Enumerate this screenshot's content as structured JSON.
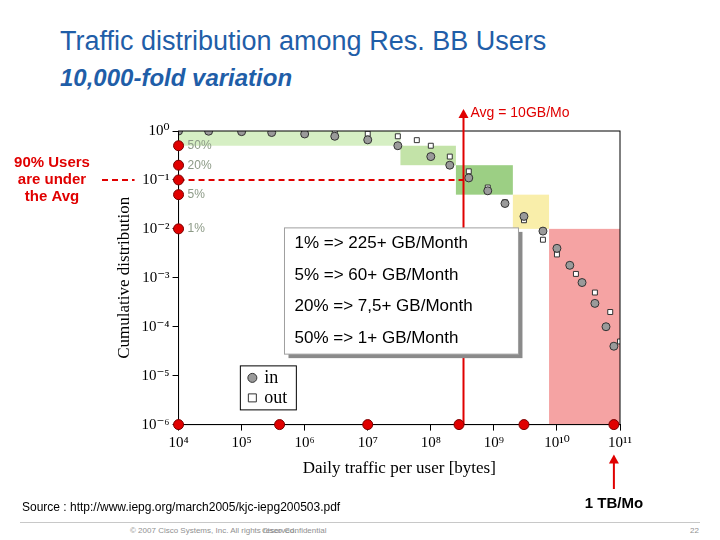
{
  "slide": {
    "title": "Traffic distribution among Res. BB Users",
    "subtitle": "10,000-fold variation",
    "source": "Source : http://www.iepg.org/march2005/kjc-iepg200503.pdf",
    "footer": [
      "© 2007 Cisco Systems, Inc. All rights reserved.",
      "Cisco Confidential",
      "22"
    ]
  },
  "chart_data": {
    "type": "scatter",
    "x_label": "Daily traffic per user [bytes]",
    "y_label": "Cumulative distribution",
    "log": true,
    "grid": false,
    "legend": "lower left",
    "xlim": [
      10000,
      100000000000
    ],
    "ylim": [
      1e-06,
      1
    ],
    "xticks": [
      {
        "value": 10000,
        "label": "10⁴"
      },
      {
        "value": 100000,
        "label": "10⁵"
      },
      {
        "value": 1000000,
        "label": "10⁶"
      },
      {
        "value": 10000000,
        "label": "10⁷"
      },
      {
        "value": 100000000,
        "label": "10⁸"
      },
      {
        "value": 1000000000,
        "label": "10⁹"
      },
      {
        "value": 10000000000,
        "label": "10¹⁰"
      },
      {
        "value": 100000000000,
        "label": "10¹¹"
      }
    ],
    "yticks": [
      {
        "value": 1e-06,
        "label": "10⁻⁶"
      },
      {
        "value": 1e-05,
        "label": "10⁻⁵"
      },
      {
        "value": 0.0001,
        "label": "10⁻⁴"
      },
      {
        "value": 0.001,
        "label": "10⁻³"
      },
      {
        "value": 0.01,
        "label": "10⁻²"
      },
      {
        "value": 0.1,
        "label": "10⁻¹"
      },
      {
        "value": 1,
        "label": "10⁰"
      }
    ],
    "series": [
      {
        "name": "in",
        "color": "#9a9a9a",
        "marker": "circle",
        "x": [
          10000,
          30000,
          100000,
          300000,
          1000000,
          3000000,
          10000000,
          30000000,
          100000000,
          200000000,
          400000000,
          800000000,
          1500000000,
          3000000000,
          6000000000,
          10000000000,
          16000000000,
          25000000000,
          40000000000,
          60000000000,
          80000000000
        ],
        "values": [
          1,
          0.99,
          0.97,
          0.93,
          0.87,
          0.78,
          0.66,
          0.5,
          0.3,
          0.2,
          0.11,
          0.06,
          0.033,
          0.018,
          0.009,
          0.004,
          0.0018,
          0.0008,
          0.0003,
          0.0001,
          4e-05
        ]
      },
      {
        "name": "out",
        "color": "#333333",
        "marker": "open_square",
        "x": [
          30000,
          100000,
          300000,
          1000000,
          3000000,
          10000000,
          30000000,
          60000000,
          100000000,
          200000000,
          400000000,
          800000000,
          1500000000,
          3000000000,
          6000000000,
          10000000000,
          20000000000,
          40000000000,
          70000000000,
          100000000000
        ],
        "values": [
          1,
          0.99,
          0.98,
          0.96,
          0.93,
          0.88,
          0.78,
          0.65,
          0.5,
          0.3,
          0.15,
          0.07,
          0.035,
          0.015,
          0.006,
          0.003,
          0.0012,
          0.0005,
          0.0002,
          5e-05
        ]
      }
    ],
    "regions": [
      {
        "label": "50%",
        "x": [
          10000,
          33000000
        ],
        "y": [
          0.5,
          1
        ],
        "color": "#d6efc4"
      },
      {
        "label": "20%",
        "x": [
          33000000,
          250000000
        ],
        "y": [
          0.2,
          0.5
        ],
        "color": "#c3e3a8"
      },
      {
        "label": "5%",
        "x": [
          250000000,
          2000000000
        ],
        "y": [
          0.05,
          0.2
        ],
        "color": "#9ccf84"
      },
      {
        "label": "1%",
        "x": [
          2000000000,
          7500000000
        ],
        "y": [
          0.01,
          0.05
        ],
        "color": "#f9eeaa"
      },
      {
        "x": [
          7500000000,
          100000000000
        ],
        "y": [
          1e-06,
          0.01
        ],
        "color": "#f5a3a3"
      }
    ],
    "avg_line": {
      "x": 330000000,
      "label": "Avg = 10GB/Mo",
      "color": "#e00000"
    },
    "under_avg": {
      "y": 0.1,
      "label": "90% Users are under the Avg",
      "color": "#e00000"
    },
    "limit_line": {
      "x": 80000000000,
      "label": "1 TB/Mo",
      "color": "#e00000"
    },
    "x_markers": {
      "values": [
        10000,
        400000,
        10000000,
        280000000,
        3000000000,
        80000000000
      ],
      "color": "#e00000"
    },
    "text_box": [
      "1% => 225+ GB/Month",
      "5% => 60+ GB/Month",
      "20% => 7,5+ GB/Month",
      "50% => 1+ GB/Month"
    ]
  }
}
